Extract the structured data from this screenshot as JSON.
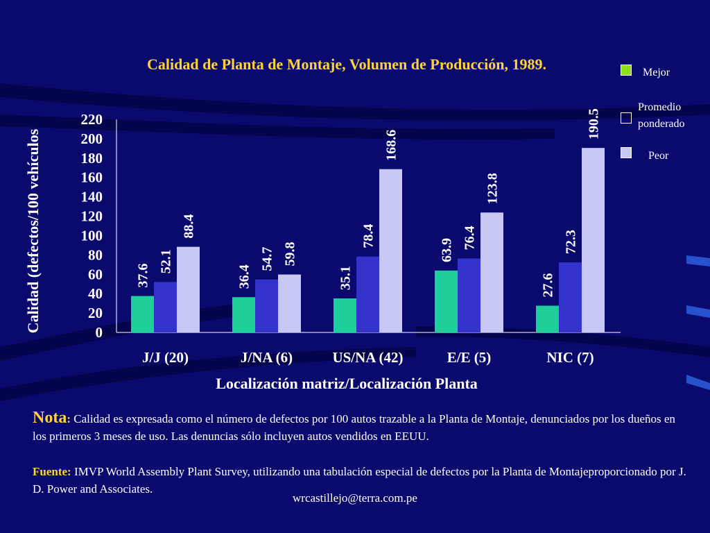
{
  "colors": {
    "background": "#0a0a6e",
    "title": "#ffd23c",
    "mejor": "#1fcf9a",
    "promedio": "#3333cc",
    "peor": "#c8c8f4",
    "legend_mejor": "#8fe01c"
  },
  "legend": {
    "mejor": "Mejor",
    "promedio_line1": "Promedio",
    "promedio_line2": "ponderado",
    "peor": "Peor"
  },
  "note": {
    "label": "Nota",
    "colon": ":",
    "text": " Calidad es expresada como el número de defectos por 100 autos trazable a la Planta de Montaje, denunciados por los dueños en los primeros 3 meses de uso. Las denuncias sólo incluyen autos vendidos en EEUU."
  },
  "fuente": {
    "label": "Fuente:",
    "text": " IMVP World Assembly Plant Survey, utilizando una tabulación especial de defectos por la Planta de Montajeproporcionado por J. D. Power and Associates."
  },
  "footer": {
    "email": "wrcastillejo@terra.com.pe"
  },
  "chart_data": {
    "type": "bar",
    "title": "Calidad de Planta de Montaje, Volumen de Producción, 1989.",
    "xlabel": "Localización matriz/Localización Planta",
    "ylabel": "Calidad (defectos/100 vehículos",
    "categories": [
      "J/J (20)",
      "J/NA (6)",
      "US/NA (42)",
      "E/E (5)",
      "NIC (7)"
    ],
    "series": [
      {
        "name": "Mejor",
        "values": [
          37.6,
          36.4,
          35.1,
          63.9,
          27.6
        ]
      },
      {
        "name": "Promedio ponderado",
        "values": [
          52.1,
          54.7,
          78.4,
          76.4,
          72.3
        ]
      },
      {
        "name": "Peor",
        "values": [
          88.4,
          59.8,
          168.6,
          123.8,
          190.5
        ]
      }
    ],
    "y_ticks": [
      "0",
      "20",
      "40",
      "60",
      "80",
      "100",
      "120",
      "140",
      "160",
      "180",
      "200",
      "220"
    ],
    "y_tick_values": [
      0,
      20,
      40,
      60,
      80,
      100,
      120,
      140,
      160,
      180,
      200,
      220
    ],
    "ylim": [
      0,
      220
    ],
    "grid": false,
    "legend_position": "top-right"
  }
}
